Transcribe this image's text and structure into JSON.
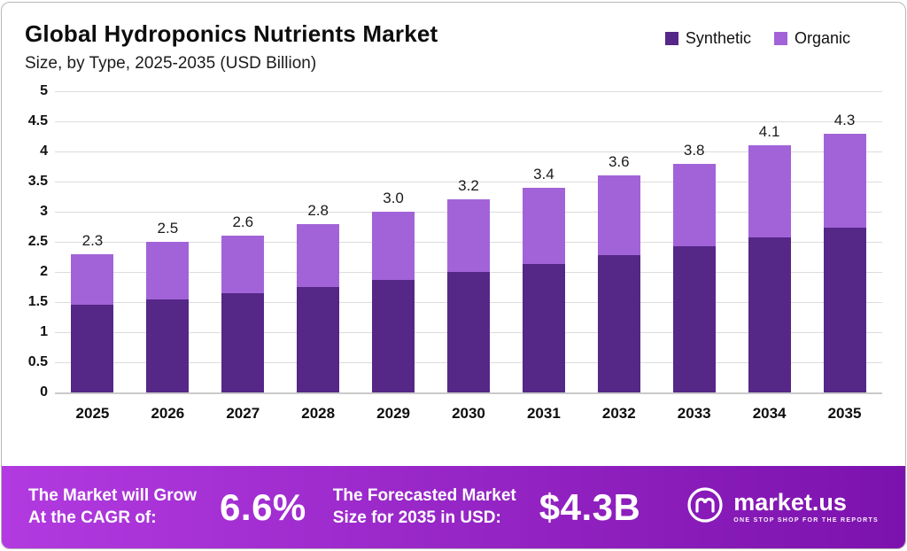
{
  "header": {
    "title": "Global Hydroponics Nutrients Market",
    "subtitle": "Size, by Type, 2025-2035 (USD Billion)"
  },
  "legend": [
    {
      "label": "Synthetic",
      "color": "#552787"
    },
    {
      "label": "Organic",
      "color": "#a263d8"
    }
  ],
  "chart_data": {
    "type": "bar",
    "stacked": true,
    "title": "Global Hydroponics Nutrients Market Size, by Type, 2025-2035 (USD Billion)",
    "categories": [
      "2025",
      "2026",
      "2027",
      "2028",
      "2029",
      "2030",
      "2031",
      "2032",
      "2033",
      "2034",
      "2035"
    ],
    "series": [
      {
        "name": "Synthetic",
        "color": "#552787",
        "values": [
          1.45,
          1.55,
          1.65,
          1.75,
          1.87,
          2.0,
          2.13,
          2.28,
          2.42,
          2.57,
          2.73
        ]
      },
      {
        "name": "Organic",
        "color": "#a263d8",
        "values": [
          0.85,
          0.95,
          0.95,
          1.05,
          1.13,
          1.2,
          1.27,
          1.32,
          1.38,
          1.53,
          1.57
        ]
      }
    ],
    "totals": [
      "2.3",
      "2.5",
      "2.6",
      "2.8",
      "3.0",
      "3.2",
      "3.4",
      "3.6",
      "3.8",
      "4.1",
      "4.3"
    ],
    "ylim": [
      0,
      5
    ],
    "ytick_step": 0.5,
    "yticks": [
      "5",
      "4.5",
      "4",
      "3.5",
      "3",
      "2.5",
      "2",
      "1.5",
      "1",
      "0.5",
      "0"
    ],
    "grid": true,
    "legend_position": "top-right",
    "xlabel": "",
    "ylabel": ""
  },
  "banner": {
    "gradient": [
      "#b23ae0",
      "#7c12ad"
    ],
    "cagr_label_line1": "The Market will Grow",
    "cagr_label_line2": "At the CAGR of:",
    "cagr_value": "6.6%",
    "forecast_label_line1": "The Forecasted Market",
    "forecast_label_line2": "Size for 2035 in USD:",
    "forecast_value": "$4.3B",
    "brand": "market.us",
    "brand_tagline": "ONE STOP SHOP FOR THE REPORTS"
  }
}
